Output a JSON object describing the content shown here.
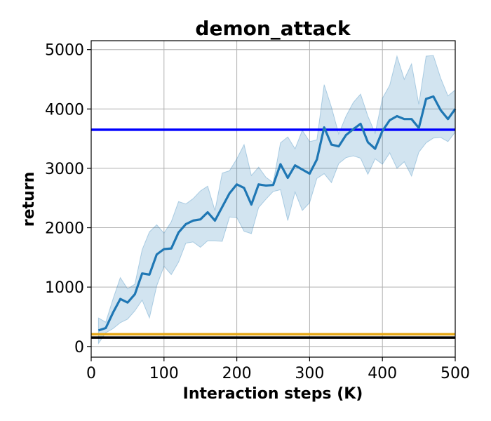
{
  "chart_data": {
    "type": "line",
    "title": "demon_attack",
    "xlabel": "Interaction steps (K)",
    "ylabel": "return",
    "xlim": [
      0,
      500
    ],
    "ylim": [
      -180,
      5150
    ],
    "xticks": [
      0,
      100,
      200,
      300,
      400,
      500
    ],
    "yticks": [
      0,
      1000,
      2000,
      3000,
      4000,
      5000
    ],
    "grid": true,
    "legend": "none",
    "series": [
      {
        "color": "#1f77b4",
        "band_color": "#1f77b4",
        "x": [
          10,
          20,
          30,
          40,
          50,
          60,
          70,
          80,
          90,
          100,
          110,
          120,
          130,
          140,
          150,
          160,
          170,
          180,
          190,
          200,
          210,
          220,
          230,
          240,
          250,
          260,
          270,
          280,
          290,
          300,
          310,
          320,
          330,
          340,
          350,
          360,
          370,
          380,
          390,
          400,
          410,
          420,
          430,
          440,
          450,
          460,
          470,
          480,
          490,
          500
        ],
        "y": [
          270,
          310,
          570,
          800,
          740,
          880,
          1230,
          1210,
          1550,
          1640,
          1650,
          1920,
          2060,
          2120,
          2140,
          2260,
          2120,
          2350,
          2580,
          2730,
          2670,
          2390,
          2730,
          2710,
          2720,
          3070,
          2840,
          3050,
          2980,
          2910,
          3150,
          3690,
          3400,
          3370,
          3560,
          3660,
          3750,
          3440,
          3330,
          3630,
          3810,
          3880,
          3830,
          3830,
          3680,
          4170,
          4210,
          3980,
          3830,
          4000
        ],
        "lower": [
          50,
          230,
          300,
          400,
          460,
          600,
          780,
          480,
          1020,
          1350,
          1210,
          1420,
          1740,
          1760,
          1670,
          1780,
          1780,
          1770,
          2180,
          2170,
          1940,
          1900,
          2340,
          2480,
          2610,
          2640,
          2120,
          2600,
          2290,
          2420,
          2830,
          2910,
          2760,
          3080,
          3180,
          3210,
          3170,
          2900,
          3160,
          3070,
          3260,
          3000,
          3110,
          2870,
          3270,
          3430,
          3510,
          3520,
          3450,
          3610
        ],
        "upper": [
          480,
          410,
          800,
          1160,
          970,
          1050,
          1630,
          1930,
          2050,
          1910,
          2100,
          2440,
          2400,
          2490,
          2620,
          2700,
          2290,
          2920,
          2960,
          3160,
          3400,
          2880,
          3020,
          2850,
          2760,
          3430,
          3530,
          3330,
          3640,
          3450,
          3480,
          4410,
          4030,
          3580,
          3880,
          4110,
          4250,
          3880,
          3590,
          4180,
          4400,
          4890,
          4500,
          4760,
          4080,
          4890,
          4900,
          4520,
          4220,
          4320
        ]
      }
    ],
    "reference_lines": [
      {
        "y": 3650,
        "color": "#0000ff"
      },
      {
        "y": 205,
        "color": "#e6a817"
      },
      {
        "y": 150,
        "color": "#000000"
      }
    ]
  }
}
